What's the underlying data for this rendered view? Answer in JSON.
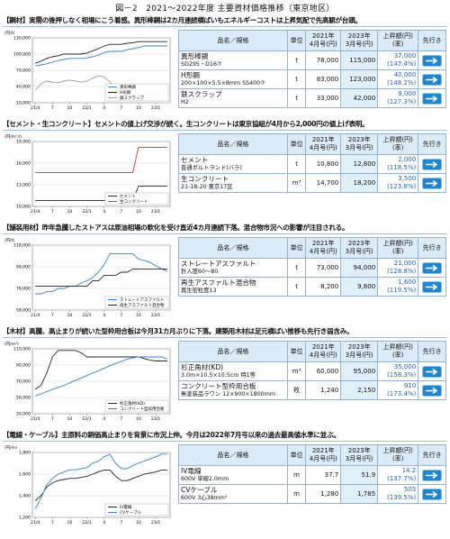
{
  "title": "図－2　2021～2022年度 主要資材価格推移（東京地区）",
  "sections": [
    {
      "heading": "【鋼材】実需の後押しなく相場にこう着感。異形棒鋼は2カ月連続横ばいもエネルギーコストは上昇気配で先高観が台頭。",
      "table": {
        "header": [
          [
            "品名／規格"
          ],
          [
            "単位"
          ],
          [
            "2021年",
            "4月号(円)"
          ],
          [
            "2023年",
            "3月号(円)"
          ],
          [
            "上昇額(円)",
            "(率)"
          ],
          [
            "先行き"
          ]
        ],
        "rows": [
          {
            "name": "異形棒鋼",
            "spec": "SD295・D16⑦",
            "unit": "t",
            "v2021": "78,000",
            "v2023": "115,000",
            "rise": "37,000",
            "rate": "(147.4%)"
          },
          {
            "name": "H形鋼",
            "spec": "200×100×5.5×8mm SS400⑦",
            "unit": "t",
            "v2021": "83,000",
            "v2023": "123,000",
            "rise": "40,000",
            "rate": "(148.2%)"
          },
          {
            "name": "鉄スクラップ",
            "spec": "H2",
            "unit": "t",
            "v2021": "33,000",
            "v2023": "42,000",
            "rise": "9,000",
            "rate": "(127.3%)"
          }
        ]
      },
      "chart": {
        "type": "line",
        "y_label": "(円/t)",
        "categories": [
          "21/4",
          null,
          null,
          "7",
          null,
          null,
          "10",
          null,
          null,
          "22/1",
          null,
          null,
          "4",
          null,
          null,
          "7",
          null,
          null,
          "10",
          null,
          null,
          "23/1",
          null,
          null
        ],
        "ylim": [
          10000,
          130000
        ],
        "yticks": [
          {
            "value": 10000,
            "label": "10,000"
          },
          {
            "value": 40000,
            "label": "40,000"
          },
          {
            "value": 70000,
            "label": "70,000"
          },
          {
            "value": 100000,
            "label": "100,000"
          },
          {
            "value": 130000,
            "label": "130,000"
          }
        ],
        "series": [
          {
            "name": "異形棒鋼",
            "color": "#3a7fc8",
            "values": [
              78000,
              80000,
              82000,
              85000,
              88000,
              90000,
              92000,
              92000,
              92000,
              93000,
              95000,
              98000,
              103000,
              105000,
              105000,
              105000,
              108000,
              110000,
              112000,
              115000,
              115000,
              115000,
              115000,
              115000
            ]
          },
          {
            "name": "H形鋼",
            "color": "#222222",
            "values": [
              83000,
              87000,
              92000,
              95000,
              97000,
              100000,
              100000,
              100000,
              100000,
              102000,
              106000,
              110000,
              115000,
              118000,
              118000,
              118000,
              120000,
              121000,
              123000,
              123000,
              123000,
              123000,
              123000,
              123000
            ]
          },
          {
            "name": "鉄スクラップ",
            "color": "#9a9a9a",
            "values": [
              33000,
              45000,
              50000,
              48000,
              47000,
              50000,
              52000,
              50000,
              48000,
              50000,
              55000,
              60000,
              58000,
              48000,
              38000,
              35000,
              37000,
              40000,
              42000,
              44000,
              42000,
              40000,
              42000,
              42000
            ]
          }
        ]
      }
    },
    {
      "heading": "【セメント・生コンクリート】セメントの値上げ交渉が続く。生コンクリートは東京協組が4月から2,000円の値上げ表明。",
      "table": {
        "header": [
          [
            "品名／規格"
          ],
          [
            "単位"
          ],
          [
            "2021年",
            "4月号(円)"
          ],
          [
            "2023年",
            "3月号(円)"
          ],
          [
            "上昇額(円)",
            "(率)"
          ],
          [
            "先行き"
          ]
        ],
        "rows": [
          {
            "name": "セメント",
            "spec": "普通ポルトランド(バラ)",
            "unit": "t",
            "v2021": "10,800",
            "v2023": "12,800",
            "rise": "2,000",
            "rate": "(118.5%)"
          },
          {
            "name": "生コンクリート",
            "spec": "21-18-20 東京17区",
            "unit": "m³",
            "v2021": "14,700",
            "v2023": "18,200",
            "rise": "3,500",
            "rate": "(123.8%)"
          }
        ]
      },
      "chart": {
        "type": "line",
        "y_label": "(円/m³,t)",
        "categories": [
          "21/4",
          null,
          null,
          "7",
          null,
          null,
          "10",
          null,
          null,
          "22/1",
          null,
          null,
          "4",
          null,
          null,
          "7",
          null,
          null,
          "10",
          null,
          null,
          "23/1",
          null,
          null
        ],
        "ylim": [
          10000,
          19000
        ],
        "yticks": [
          {
            "value": 10000,
            "label": "10,000"
          },
          {
            "value": 13000,
            "label": "13,000"
          },
          {
            "value": 16000,
            "label": "16,000"
          },
          {
            "value": 19000,
            "label": "19,000"
          }
        ],
        "series": [
          {
            "name": "セメント",
            "color": "#222222",
            "values": [
              10800,
              10800,
              10800,
              10800,
              10800,
              10800,
              10800,
              10800,
              10800,
              10800,
              10800,
              10800,
              10800,
              10800,
              10800,
              10800,
              10800,
              10800,
              12800,
              12800,
              12800,
              12800,
              12800,
              12800
            ]
          },
          {
            "name": "生コンクリート",
            "color": "#d23a3a",
            "values": [
              14700,
              14700,
              14700,
              14700,
              14700,
              14700,
              14700,
              14700,
              14700,
              14700,
              14700,
              14700,
              14700,
              14700,
              14700,
              14700,
              14700,
              14700,
              18200,
              18200,
              18200,
              18200,
              18200,
              18200
            ]
          }
        ]
      }
    },
    {
      "heading": "【舗装用材】昨年急騰したストアスは原油相場の軟化を受け直近4カ月連続下落。混合物市況への影響が注目される。",
      "table": {
        "header": [
          [
            "品名／規格"
          ],
          [
            "単位"
          ],
          [
            "2021年",
            "4月号(円)"
          ],
          [
            "2023年",
            "3月号(円)"
          ],
          [
            "上昇額(円)",
            "(率)"
          ],
          [
            "先行き"
          ]
        ],
        "rows": [
          {
            "name": "ストレートアスファルト",
            "spec": "針入度60～80",
            "unit": "t",
            "v2021": "73,000",
            "v2023": "94,000",
            "rise": "21,000",
            "rate": "(128.8%)"
          },
          {
            "name": "再生アスファルト混合物",
            "spec": "再生密粒度13",
            "unit": "t",
            "v2021": "8,200",
            "v2023": "9,800",
            "rise": "1,600",
            "rate": "(119.5%)"
          }
        ]
      },
      "chart": {
        "type": "line",
        "y_label": "(円/t)",
        "categories": [
          "21/4",
          null,
          null,
          "7",
          null,
          null,
          "10",
          null,
          null,
          "22/1",
          null,
          null,
          "4",
          null,
          null,
          "7",
          null,
          null,
          "10",
          null,
          null,
          "23/1",
          null,
          null
        ],
        "ylim": [
          58000,
          118000
        ],
        "yticks": [
          {
            "value": 58000,
            "label": "58,000"
          },
          {
            "value": 78000,
            "label": "78,000"
          },
          {
            "value": 98000,
            "label": "98,000"
          },
          {
            "value": 118000,
            "label": "118,000"
          }
        ],
        "y2lim": [
          6000,
          12000
        ],
        "series": [
          {
            "name": "ストレートアスファルト",
            "color": "#3a7fc8",
            "values": [
              73000,
              73000,
              75000,
              75000,
              78000,
              78000,
              80000,
              80000,
              83000,
              85000,
              88000,
              93000,
              100000,
              110000,
              110000,
              110000,
              110000,
              110000,
              105000,
              104000,
              102000,
              99000,
              96000,
              94000
            ]
          },
          {
            "name": "再生アスファルト混合物",
            "color": "#222222",
            "axis": "y2",
            "values": [
              8200,
              8200,
              8200,
              8200,
              8200,
              8200,
              8200,
              8200,
              8200,
              8200,
              8700,
              8700,
              9200,
              9200,
              9200,
              9500,
              9500,
              9800,
              9800,
              9800,
              9800,
              9800,
              9800,
              9800
            ]
          }
        ]
      }
    },
    {
      "heading": "【木材】高騰、高止まりが続いた型枠用合板は今月31カ月ぶりに下落。建築用木材は足元横ばい推移も先行き弱含み。",
      "table": {
        "header": [
          [
            "品名／規格"
          ],
          [
            "単位"
          ],
          [
            "2021年",
            "4月号(円)"
          ],
          [
            "2023年",
            "3月号(円)"
          ],
          [
            "上昇額(円)",
            "(率)"
          ],
          [
            "先行き"
          ]
        ],
        "rows": [
          {
            "name": "杉正角材(KD)",
            "spec": "3.0m×10.5×10.5cm 特1等",
            "unit": "m³",
            "v2021": "60,000",
            "v2023": "95,000",
            "rise": "35,000",
            "rate": "(158.3%)"
          },
          {
            "name": "コンクリート型枠用合板",
            "spec": "無塗装品ラワン 12×900×1800mm",
            "unit": "枚",
            "v2021": "1,240",
            "v2023": "2,150",
            "rise": "910",
            "rate": "(173.4%)"
          }
        ]
      },
      "chart": {
        "type": "line",
        "y_label": "(円/m³)",
        "categories": [
          "21/4",
          null,
          null,
          "7",
          null,
          null,
          "10",
          null,
          null,
          "22/1",
          null,
          null,
          "4",
          null,
          null,
          "7",
          null,
          null,
          "10",
          null,
          null,
          "23/1",
          null,
          null
        ],
        "ylim": [
          30000,
          110000
        ],
        "yticks": [
          {
            "value": 30000,
            "label": "30,000"
          },
          {
            "value": 50000,
            "label": "50,000"
          },
          {
            "value": 70000,
            "label": "70,000"
          },
          {
            "value": 90000,
            "label": "90,000"
          },
          {
            "value": 110000,
            "label": "110,000"
          }
        ],
        "y2lim": [
          800,
          2400
        ],
        "series": [
          {
            "name": "杉正角材(KD)",
            "color": "#222222",
            "values": [
              60000,
              65000,
              80000,
              100000,
              108000,
              108000,
              108000,
              108000,
              105000,
              100000,
              100000,
              100000,
              100000,
              100000,
              100000,
              100000,
              100000,
              100000,
              100000,
              98000,
              96000,
              95000,
              95000,
              95000
            ]
          },
          {
            "name": "コンクリート型枠用合板",
            "color": "#3a7fc8",
            "axis": "y2",
            "values": [
              1240,
              1290,
              1340,
              1400,
              1450,
              1500,
              1560,
              1620,
              1680,
              1740,
              1800,
              1860,
              1920,
              1980,
              2040,
              2090,
              2140,
              2180,
              2200,
              2200,
              2200,
              2200,
              2200,
              2150
            ]
          }
        ]
      }
    },
    {
      "heading": "【電線・ケーブル】主原料の銅価高止まりを背景に市況上伸。今月は2022年7月号以来の過去最高値水準に並ぶ。",
      "table": {
        "header": [
          [
            "品名／規格"
          ],
          [
            "単位"
          ],
          [
            "2021年",
            "4月号(円)"
          ],
          [
            "2023年",
            "3月号(円)"
          ],
          [
            "上昇額(円)",
            "(率)"
          ],
          [
            "先行き"
          ]
        ],
        "rows": [
          {
            "name": "IV電線",
            "spec": "600V 単線2.0mm",
            "unit": "m",
            "v2021": "37.7",
            "v2023": "51.9",
            "rise": "14.2",
            "rate": "(137.7%)"
          },
          {
            "name": "CVケーブル",
            "spec": "600V 3心38mm²",
            "unit": "m",
            "v2021": "1,280",
            "v2023": "1,785",
            "rise": "505",
            "rate": "(139.5%)"
          }
        ]
      },
      "chart": {
        "type": "line",
        "y_label": "(円/m)",
        "categories": [
          "21/4",
          null,
          null,
          "7",
          null,
          null,
          "10",
          null,
          null,
          "22/1",
          null,
          null,
          "4",
          null,
          null,
          "7",
          null,
          null,
          "10",
          null,
          null,
          "23/1",
          null,
          null
        ],
        "ylim": [
          1200,
          1800
        ],
        "yticks": [
          {
            "value": 1200,
            "label": "1,200"
          },
          {
            "value": 1400,
            "label": "1,400"
          },
          {
            "value": 1600,
            "label": "1,600"
          },
          {
            "value": 1800,
            "label": "1,800"
          }
        ],
        "y2lim": [
          30,
          60
        ],
        "series": [
          {
            "name": "IV電線",
            "color": "#222222",
            "axis": "y2",
            "values": [
              37.7,
              40,
              44,
              46,
              47,
              47.5,
              48,
              48,
              48.5,
              49,
              50,
              51,
              51.9,
              51.9,
              49,
              47,
              47,
              48,
              49,
              50,
              50.5,
              51,
              51.9,
              51.9
            ]
          },
          {
            "name": "CVケーブル",
            "color": "#3a7fc8",
            "values": [
              1280,
              1380,
              1500,
              1560,
              1600,
              1620,
              1640,
              1640,
              1650,
              1660,
              1700,
              1720,
              1760,
              1785,
              1700,
              1650,
              1650,
              1680,
              1700,
              1720,
              1740,
              1760,
              1785,
              1785
            ]
          }
        ]
      }
    }
  ]
}
